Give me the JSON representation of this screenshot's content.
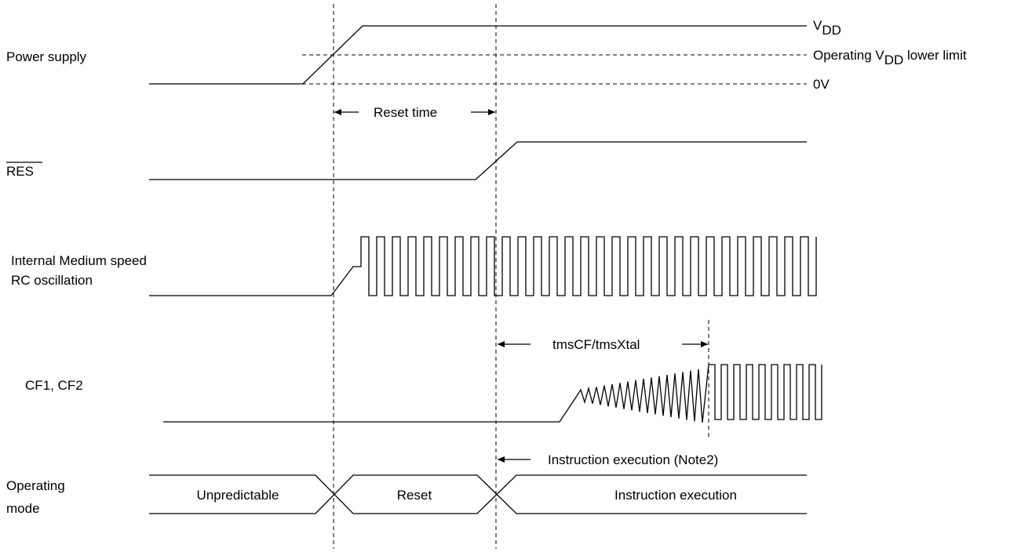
{
  "signals": {
    "power_supply": "Power supply",
    "res": "RES",
    "internal_rc_line1": "Internal Medium speed",
    "internal_rc_line2": "RC oscillation",
    "cf": "CF1, CF2",
    "mode_line1": "Operating",
    "mode_line2": "mode"
  },
  "levels": {
    "vdd_v": "V",
    "vdd_sub": "DD",
    "lower_pre": "Operating V",
    "lower_sub": "DD",
    "lower_post": " lower limit",
    "zero": "0V"
  },
  "annotations": {
    "reset_time": "Reset time",
    "tms": "tmsCF/tmsXtal",
    "instr_note": "Instruction execution (Note2)"
  },
  "modes": {
    "unpredictable": "Unpredictable",
    "reset": "Reset",
    "execution": "Instruction execution"
  }
}
